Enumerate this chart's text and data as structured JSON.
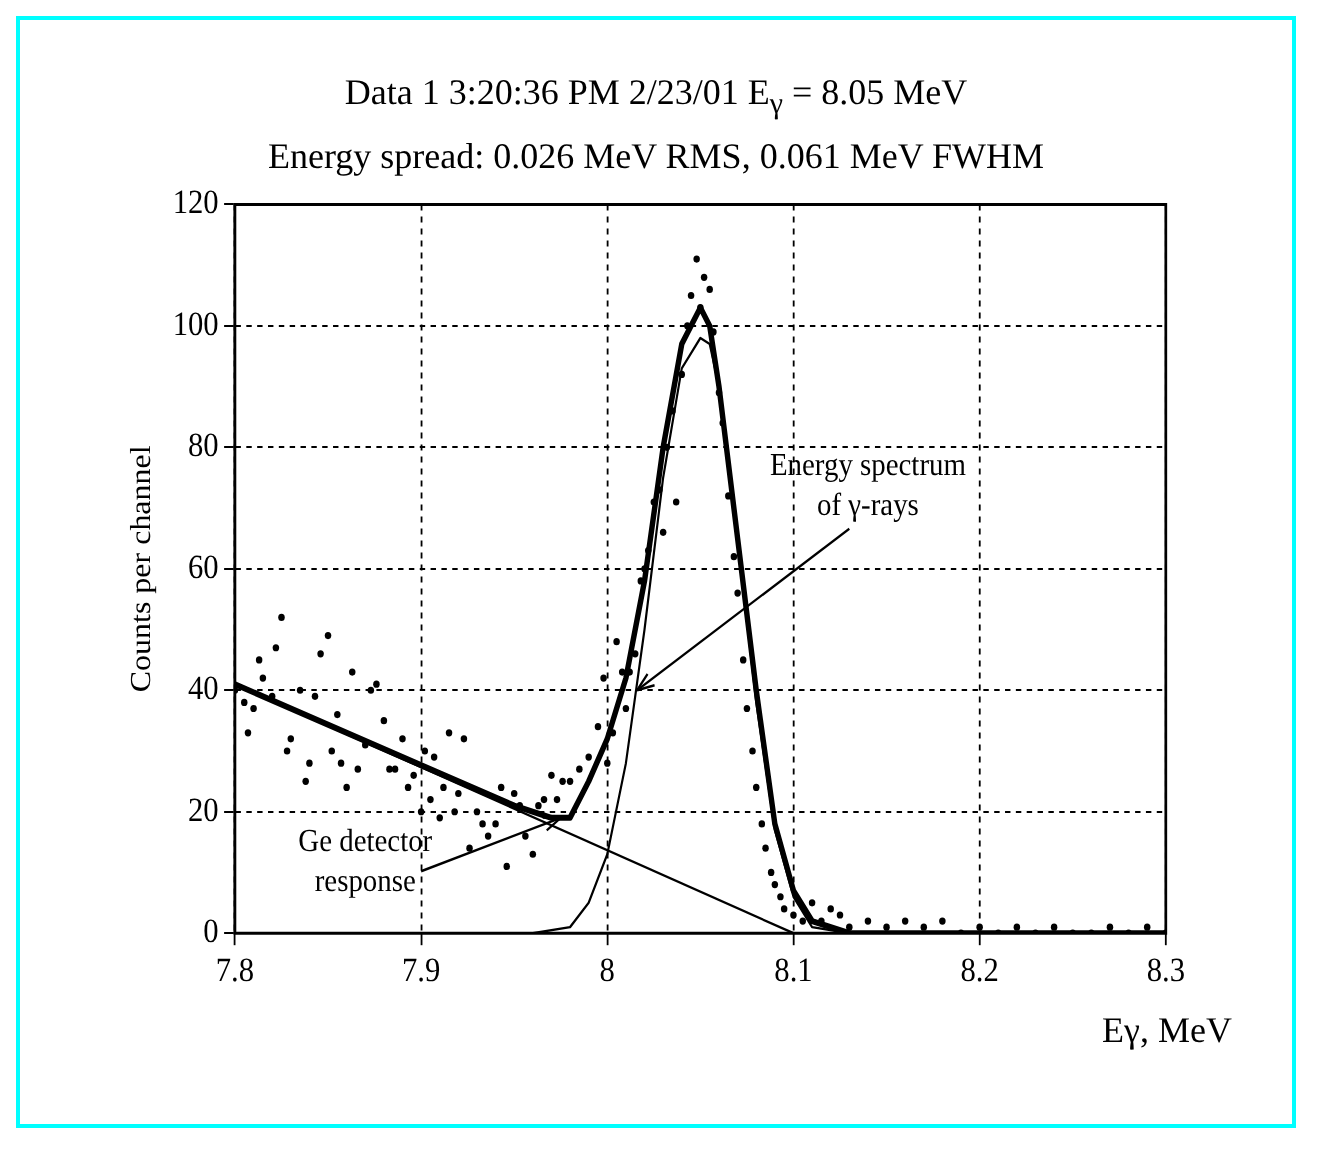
{
  "chart_data": {
    "type": "scatter",
    "title": "Data 1 3:20:36 PM 2/23/01   E$_{γ}$ = 8.05 MeV",
    "subtitle": "Energy spread: 0.026 MeV RMS,  0.061 MeV FWHM",
    "xlabel": "Eγ, MeV",
    "ylabel": "Counts per channel",
    "xlim": [
      7.8,
      8.3
    ],
    "xticks": [
      7.8,
      7.9,
      8,
      8.1,
      8.2,
      8.3
    ],
    "ylim": [
      0,
      120
    ],
    "yticks": [
      0,
      20,
      40,
      60,
      80,
      100,
      120
    ],
    "grid": true,
    "legend": false,
    "annotations": [
      {
        "text": "Energy spectrum of γ-rays",
        "x": 8.016,
        "y": 40
      },
      {
        "text": "Ge detector response",
        "x": 7.975,
        "y": 19
      }
    ],
    "series": [
      {
        "type": "scatter",
        "color": "#000000",
        "marker": "circle",
        "x": [
          7.8,
          7.805,
          7.807,
          7.81,
          7.813,
          7.815,
          7.82,
          7.822,
          7.825,
          7.828,
          7.83,
          7.835,
          7.838,
          7.84,
          7.843,
          7.846,
          7.85,
          7.852,
          7.855,
          7.857,
          7.86,
          7.863,
          7.866,
          7.87,
          7.873,
          7.876,
          7.88,
          7.883,
          7.886,
          7.89,
          7.893,
          7.896,
          7.9,
          7.902,
          7.905,
          7.907,
          7.91,
          7.912,
          7.915,
          7.918,
          7.92,
          7.923,
          7.926,
          7.93,
          7.933,
          7.936,
          7.94,
          7.943,
          7.946,
          7.95,
          7.953,
          7.956,
          7.96,
          7.963,
          7.966,
          7.97,
          7.973,
          7.976,
          7.98,
          7.985,
          7.99,
          7.995,
          7.998,
          8,
          8.003,
          8.005,
          8.008,
          8.01,
          8.012,
          8.015,
          8.018,
          8.02,
          8.022,
          8.025,
          8.028,
          8.03,
          8.032,
          8.035,
          8.037,
          8.04,
          8.043,
          8.045,
          8.048,
          8.05,
          8.052,
          8.055,
          8.057,
          8.06,
          8.062,
          8.065,
          8.068,
          8.07,
          8.073,
          8.075,
          8.078,
          8.08,
          8.083,
          8.085,
          8.088,
          8.09,
          8.093,
          8.095,
          8.1,
          8.105,
          8.11,
          8.115,
          8.12,
          8.125,
          8.13,
          8.14,
          8.15,
          8.16,
          8.17,
          8.18,
          8.19,
          8.2,
          8.21,
          8.22,
          8.23,
          8.24,
          8.25,
          8.26,
          8.27,
          8.28,
          8.29,
          8.3
        ],
        "values": [
          40,
          38,
          33,
          37,
          45,
          42,
          39,
          47,
          52,
          30,
          32,
          40,
          25,
          28,
          39,
          46,
          49,
          30,
          36,
          28,
          24,
          43,
          27,
          31,
          40,
          41,
          35,
          27,
          27,
          32,
          24,
          26,
          20,
          30,
          22,
          29,
          19,
          24,
          33,
          20,
          23,
          32,
          14,
          20,
          18,
          16,
          18,
          24,
          11,
          23,
          21,
          16,
          13,
          21,
          22,
          26,
          22,
          25,
          25,
          27,
          29,
          34,
          42,
          28,
          33,
          48,
          43,
          37,
          43,
          46,
          58,
          60,
          63,
          71,
          73,
          66,
          80,
          86,
          71,
          92,
          100,
          105,
          111,
          103,
          108,
          106,
          99,
          89,
          84,
          72,
          62,
          56,
          45,
          37,
          30,
          24,
          18,
          14,
          10,
          8,
          6,
          4,
          3,
          2,
          5,
          2,
          4,
          3,
          1,
          2,
          1,
          2,
          1,
          2,
          0,
          1,
          0,
          1,
          0,
          1,
          0,
          0,
          1,
          0,
          1,
          0
        ]
      },
      {
        "type": "line",
        "color": "#000000",
        "marker": "none",
        "x": [
          7.8,
          7.95,
          7.97,
          7.98,
          7.99,
          8,
          8.01,
          8.02,
          8.03,
          8.04,
          8.05,
          8.055,
          8.06,
          8.07,
          8.08,
          8.09,
          8.1,
          8.11,
          8.13,
          8.3
        ],
        "values": [
          41,
          21,
          19,
          19,
          25,
          32,
          42,
          58,
          80,
          97,
          103,
          100,
          90,
          65,
          40,
          18,
          7,
          2,
          0,
          0
        ]
      },
      {
        "type": "line",
        "color": "#000000",
        "marker": "none",
        "x": [
          7.96,
          7.98,
          7.99,
          8,
          8.01,
          8.02,
          8.03,
          8.04,
          8.05,
          8.055,
          8.06,
          8.07,
          8.08,
          8.09,
          8.1,
          8.11,
          8.13
        ],
        "values": [
          0,
          1,
          5,
          13,
          28,
          50,
          75,
          93,
          98,
          97,
          90,
          65,
          38,
          17,
          6,
          1,
          0
        ]
      },
      {
        "type": "line",
        "color": "#000000",
        "marker": "none",
        "x": [
          7.8,
          8.1
        ],
        "values": [
          41,
          0
        ]
      }
    ]
  }
}
